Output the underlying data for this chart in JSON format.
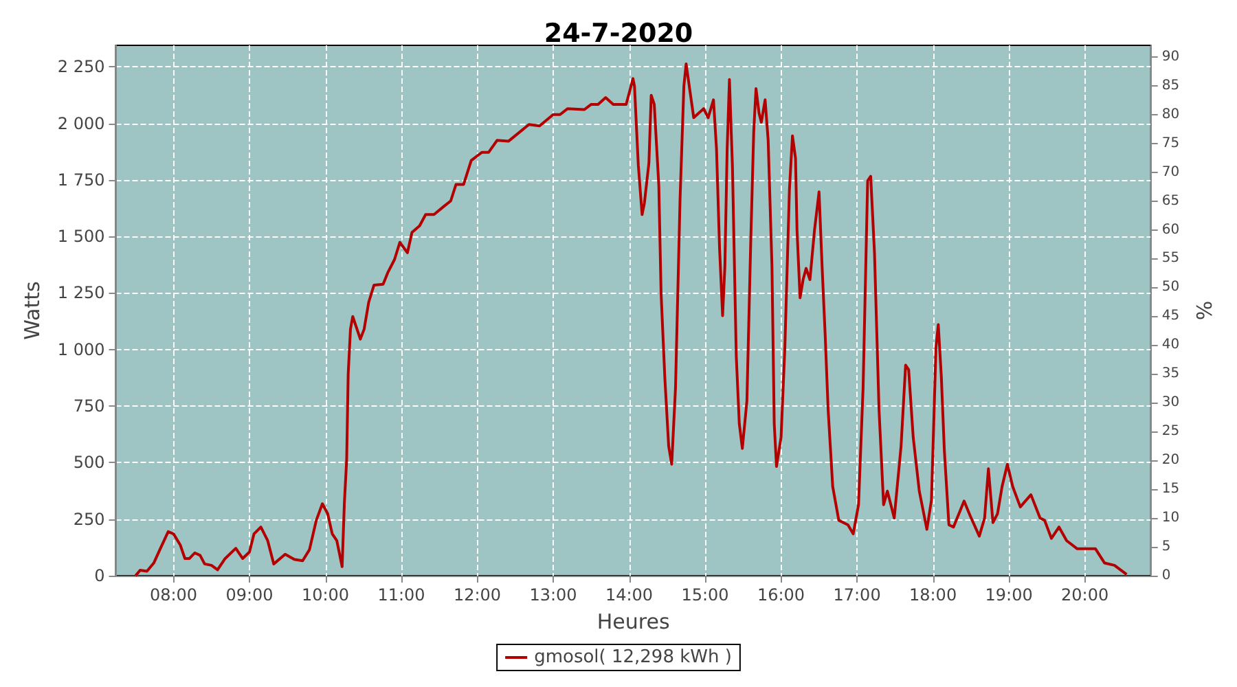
{
  "chart_data": {
    "type": "line",
    "title": "24-7-2020",
    "xlabel": "Heures",
    "ylabel": "Watts",
    "y2label": "%",
    "xlim": [
      7.24,
      20.87
    ],
    "xticks": [
      {
        "value": 8,
        "label": "08:00"
      },
      {
        "value": 9,
        "label": "09:00"
      },
      {
        "value": 10,
        "label": "10:00"
      },
      {
        "value": 11,
        "label": "11:00"
      },
      {
        "value": 12,
        "label": "12:00"
      },
      {
        "value": 13,
        "label": "13:00"
      },
      {
        "value": 14,
        "label": "14:00"
      },
      {
        "value": 15,
        "label": "15:00"
      },
      {
        "value": 16,
        "label": "16:00"
      },
      {
        "value": 17,
        "label": "17:00"
      },
      {
        "value": 18,
        "label": "18:00"
      },
      {
        "value": 19,
        "label": "19:00"
      },
      {
        "value": 20,
        "label": "20:00"
      }
    ],
    "ylim": [
      0,
      2345
    ],
    "yticks": [
      0,
      250,
      500,
      750,
      {
        "value": 1000,
        "label": "1 000"
      },
      {
        "value": 1250,
        "label": "1 250"
      },
      {
        "value": 1500,
        "label": "1 500"
      },
      {
        "value": 1750,
        "label": "1 750"
      },
      {
        "value": 2000,
        "label": "2 000"
      },
      {
        "value": 2250,
        "label": "2 250"
      }
    ],
    "y2lim": [
      0,
      92
    ],
    "y2ticks": [
      0,
      5,
      10,
      15,
      20,
      25,
      30,
      35,
      40,
      45,
      50,
      55,
      60,
      65,
      70,
      75,
      80,
      85,
      90
    ],
    "grid": true,
    "legend": "bottom",
    "marker": "none",
    "line_style": "solid",
    "series": [
      {
        "name": "gmosol( 12,298 kWh )",
        "color": "#b30000",
        "x": [
          7.5,
          7.56,
          7.65,
          7.74,
          7.82,
          7.93,
          8.0,
          8.09,
          8.15,
          8.21,
          8.28,
          8.35,
          8.41,
          8.5,
          8.58,
          8.68,
          8.82,
          8.91,
          9.0,
          9.06,
          9.15,
          9.24,
          9.32,
          9.47,
          9.59,
          9.7,
          9.79,
          9.88,
          9.96,
          10.03,
          10.09,
          10.15,
          10.22,
          10.25,
          10.28,
          10.3,
          10.33,
          10.36,
          10.46,
          10.51,
          10.57,
          10.64,
          10.76,
          10.82,
          10.91,
          10.98,
          11.08,
          11.14,
          11.24,
          11.32,
          11.43,
          11.56,
          11.65,
          11.72,
          11.82,
          11.92,
          12.06,
          12.15,
          12.26,
          12.41,
          12.68,
          12.82,
          13.0,
          13.09,
          13.19,
          13.41,
          13.5,
          13.59,
          13.69,
          13.79,
          13.96,
          14.05,
          14.07,
          14.12,
          14.17,
          14.2,
          14.26,
          14.29,
          14.33,
          14.39,
          14.42,
          14.47,
          14.52,
          14.56,
          14.61,
          14.67,
          14.72,
          14.75,
          14.8,
          14.85,
          14.98,
          15.04,
          15.11,
          15.15,
          15.19,
          15.23,
          15.26,
          15.29,
          15.32,
          15.36,
          15.41,
          15.45,
          15.49,
          15.55,
          15.6,
          15.64,
          15.67,
          15.71,
          15.74,
          15.79,
          15.83,
          15.88,
          15.91,
          15.94,
          16.0,
          16.05,
          16.11,
          16.15,
          16.19,
          16.21,
          16.25,
          16.29,
          16.33,
          16.38,
          16.44,
          16.5,
          16.54,
          16.58,
          16.62,
          16.68,
          16.76,
          16.88,
          16.95,
          17.02,
          17.08,
          17.14,
          17.18,
          17.23,
          17.29,
          17.35,
          17.4,
          17.49,
          17.58,
          17.64,
          17.68,
          17.74,
          17.82,
          17.92,
          17.98,
          18.04,
          18.07,
          18.11,
          18.15,
          18.21,
          18.27,
          18.41,
          18.49,
          18.61,
          18.68,
          18.73,
          18.79,
          18.85,
          18.91,
          18.98,
          19.05,
          19.15,
          19.29,
          19.41,
          19.47,
          19.56,
          19.66,
          19.76,
          19.9,
          20.14,
          20.26,
          20.39,
          20.55
        ],
        "values": [
          0,
          24,
          20,
          56,
          115,
          195,
          185,
          135,
          76,
          76,
          101,
          90,
          52,
          46,
          26,
          76,
          121,
          76,
          105,
          185,
          215,
          155,
          52,
          95,
          72,
          66,
          115,
          245,
          318,
          274,
          185,
          155,
          40,
          324,
          513,
          891,
          1090,
          1146,
          1046,
          1090,
          1209,
          1285,
          1289,
          1339,
          1398,
          1474,
          1428,
          1518,
          1547,
          1597,
          1597,
          1633,
          1657,
          1730,
          1730,
          1836,
          1872,
          1872,
          1925,
          1921,
          1995,
          1989,
          2039,
          2039,
          2065,
          2061,
          2084,
          2084,
          2114,
          2084,
          2084,
          2198,
          2164,
          1816,
          1597,
          1647,
          1826,
          2124,
          2084,
          1726,
          1249,
          871,
          573,
          493,
          831,
          1667,
          2164,
          2263,
          2144,
          2025,
          2065,
          2025,
          2104,
          1886,
          1448,
          1150,
          1368,
          1886,
          2194,
          1806,
          971,
          672,
          563,
          772,
          1468,
          1965,
          2154,
          2045,
          2005,
          2104,
          1925,
          1368,
          672,
          483,
          613,
          1011,
          1707,
          1945,
          1846,
          1527,
          1229,
          1309,
          1359,
          1309,
          1527,
          1697,
          1368,
          1070,
          732,
          394,
          245,
          225,
          185,
          314,
          831,
          1746,
          1766,
          1428,
          732,
          314,
          374,
          255,
          573,
          931,
          911,
          612,
          374,
          205,
          334,
          1011,
          1110,
          881,
          553,
          225,
          215,
          330,
          265,
          175,
          255,
          473,
          235,
          274,
          394,
          493,
          394,
          304,
          358,
          255,
          245,
          165,
          215,
          155,
          119,
          119,
          56,
          46,
          6
        ]
      }
    ]
  }
}
